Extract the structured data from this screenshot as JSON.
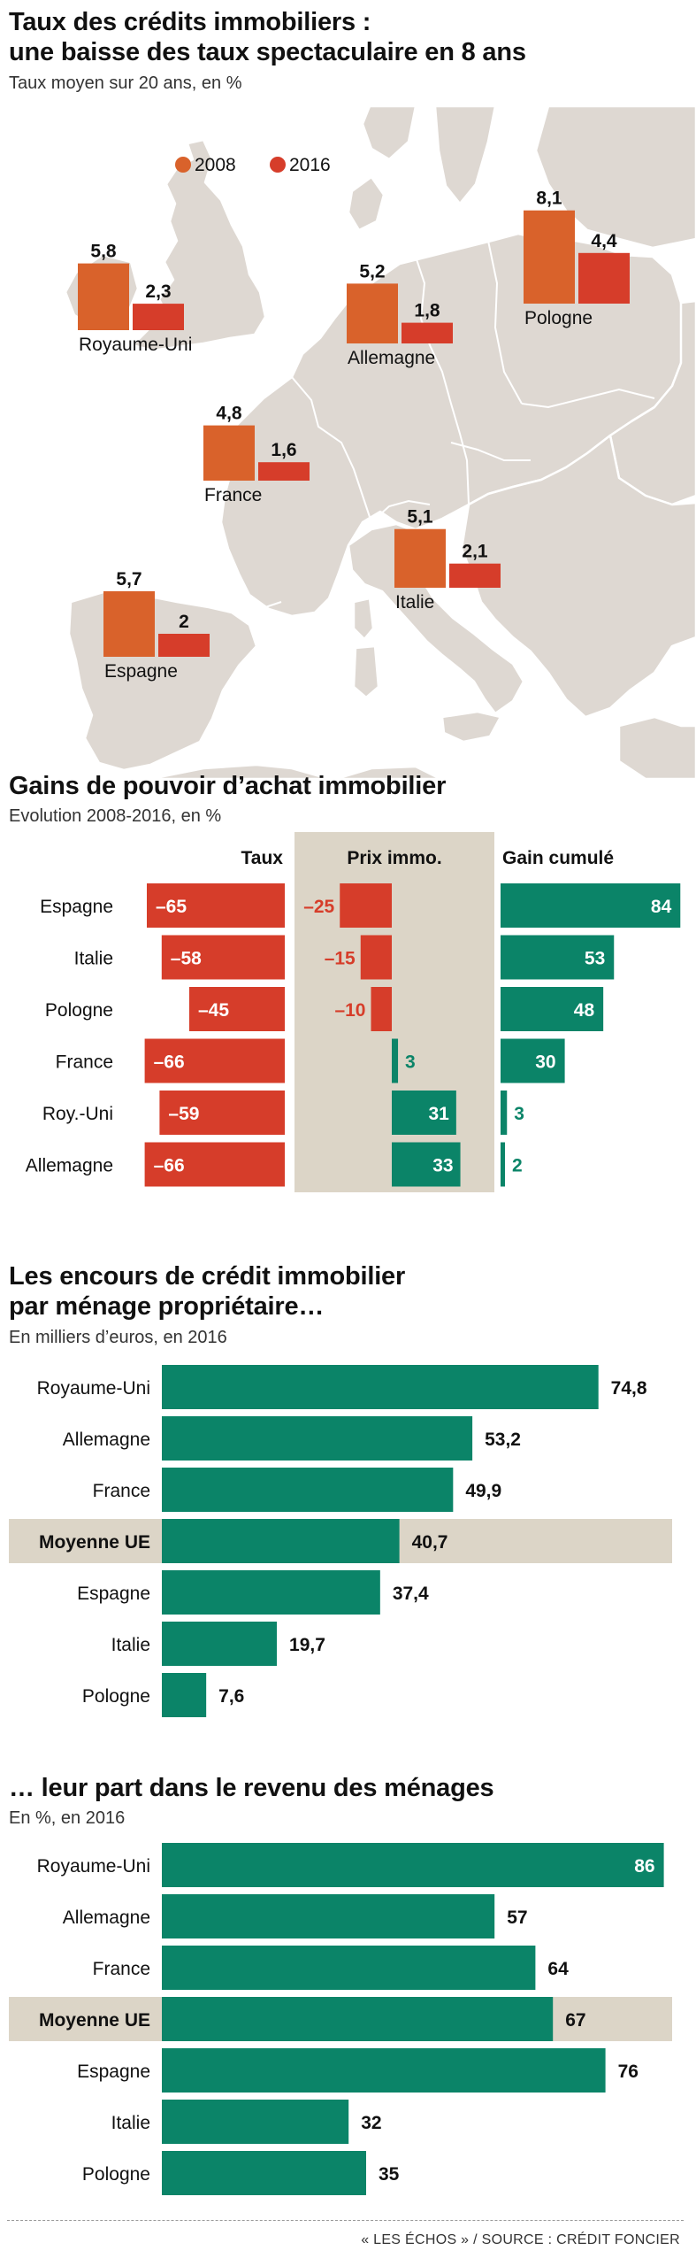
{
  "colors": {
    "orange": "#d9622b",
    "red": "#d63d2a",
    "green": "#0b8468",
    "beige": "#dcd5c7",
    "map_land": "#ded8d2",
    "map_stroke": "#ffffff"
  },
  "map_section": {
    "title_line1": "Taux des crédits immobiliers :",
    "title_line2": "une baisse des taux spectaculaire en 8 ans",
    "subtitle": "Taux moyen sur 20 ans, en %"
  },
  "gains_section": {
    "title": "Gains de pouvoir d’achat immobilier",
    "subtitle": "Evolution 2008-2016, en %"
  },
  "encours_section": {
    "title_line1": "Les encours de crédit immobilier",
    "title_line2": "par ménage propriétaire…",
    "subtitle": "En milliers d’euros, en 2016"
  },
  "part_section": {
    "title": "… leur part dans le revenu des ménages",
    "subtitle": "En %, en 2016"
  },
  "footer": "« LES ÉCHOS » / SOURCE : CRÉDIT FONCIER",
  "chart_data": [
    {
      "type": "bar",
      "title": "Taux des crédits immobiliers : une baisse des taux spectaculaire en 8 ans",
      "subtitle": "Taux moyen sur 20 ans, en %",
      "legend_position": "top-left",
      "categories": [
        "Royaume-Uni",
        "Allemagne",
        "Pologne",
        "France",
        "Italie",
        "Espagne"
      ],
      "series": [
        {
          "name": "2008",
          "values": [
            5.8,
            5.2,
            8.1,
            4.8,
            5.1,
            5.7
          ],
          "labels": [
            "5,8",
            "5,2",
            "8,1",
            "4,8",
            "5,1",
            "5,7"
          ]
        },
        {
          "name": "2016",
          "values": [
            2.3,
            1.8,
            4.4,
            1.6,
            2.1,
            2.0
          ],
          "labels": [
            "2,3",
            "1,8",
            "4,4",
            "1,6",
            "2,1",
            "2"
          ]
        }
      ]
    },
    {
      "type": "bar",
      "title": "Gains de pouvoir d’achat immobilier",
      "subtitle": "Evolution 2008-2016, en %",
      "categories": [
        "Espagne",
        "Italie",
        "Pologne",
        "France",
        "Roy.-Uni",
        "Allemagne"
      ],
      "series": [
        {
          "name": "Taux",
          "values": [
            -65,
            -58,
            -45,
            -66,
            -59,
            -66
          ],
          "labels": [
            "–65",
            "–58",
            "–45",
            "–66",
            "–59",
            "–66"
          ]
        },
        {
          "name": "Prix immo.",
          "values": [
            -25,
            -15,
            -10,
            3,
            31,
            33
          ],
          "labels": [
            "–25",
            "–15",
            "–10",
            "3",
            "31",
            "33"
          ]
        },
        {
          "name": "Gain cumulé",
          "values": [
            84,
            53,
            48,
            30,
            3,
            2
          ],
          "labels": [
            "84",
            "53",
            "48",
            "30",
            "3",
            "2"
          ]
        }
      ]
    },
    {
      "type": "bar",
      "orientation": "horizontal",
      "title": "Les encours de crédit immobilier par ménage propriétaire…",
      "subtitle": "En milliers d’euros, en 2016",
      "categories": [
        "Royaume-Uni",
        "Allemagne",
        "France",
        "Moyenne UE",
        "Espagne",
        "Italie",
        "Pologne"
      ],
      "values": [
        74.8,
        53.2,
        49.9,
        40.7,
        37.4,
        19.7,
        7.6
      ],
      "labels": [
        "74,8",
        "53,2",
        "49,9",
        "40,7",
        "37,4",
        "19,7",
        "7,6"
      ],
      "highlight": "Moyenne UE"
    },
    {
      "type": "bar",
      "orientation": "horizontal",
      "title": "… leur part dans le revenu des ménages",
      "subtitle": "En %, en 2016",
      "categories": [
        "Royaume-Uni",
        "Allemagne",
        "France",
        "Moyenne UE",
        "Espagne",
        "Italie",
        "Pologne"
      ],
      "values": [
        86,
        57,
        64,
        67,
        76,
        32,
        35
      ],
      "labels": [
        "86",
        "57",
        "64",
        "67",
        "76",
        "32",
        "35"
      ],
      "highlight": "Moyenne UE"
    }
  ]
}
